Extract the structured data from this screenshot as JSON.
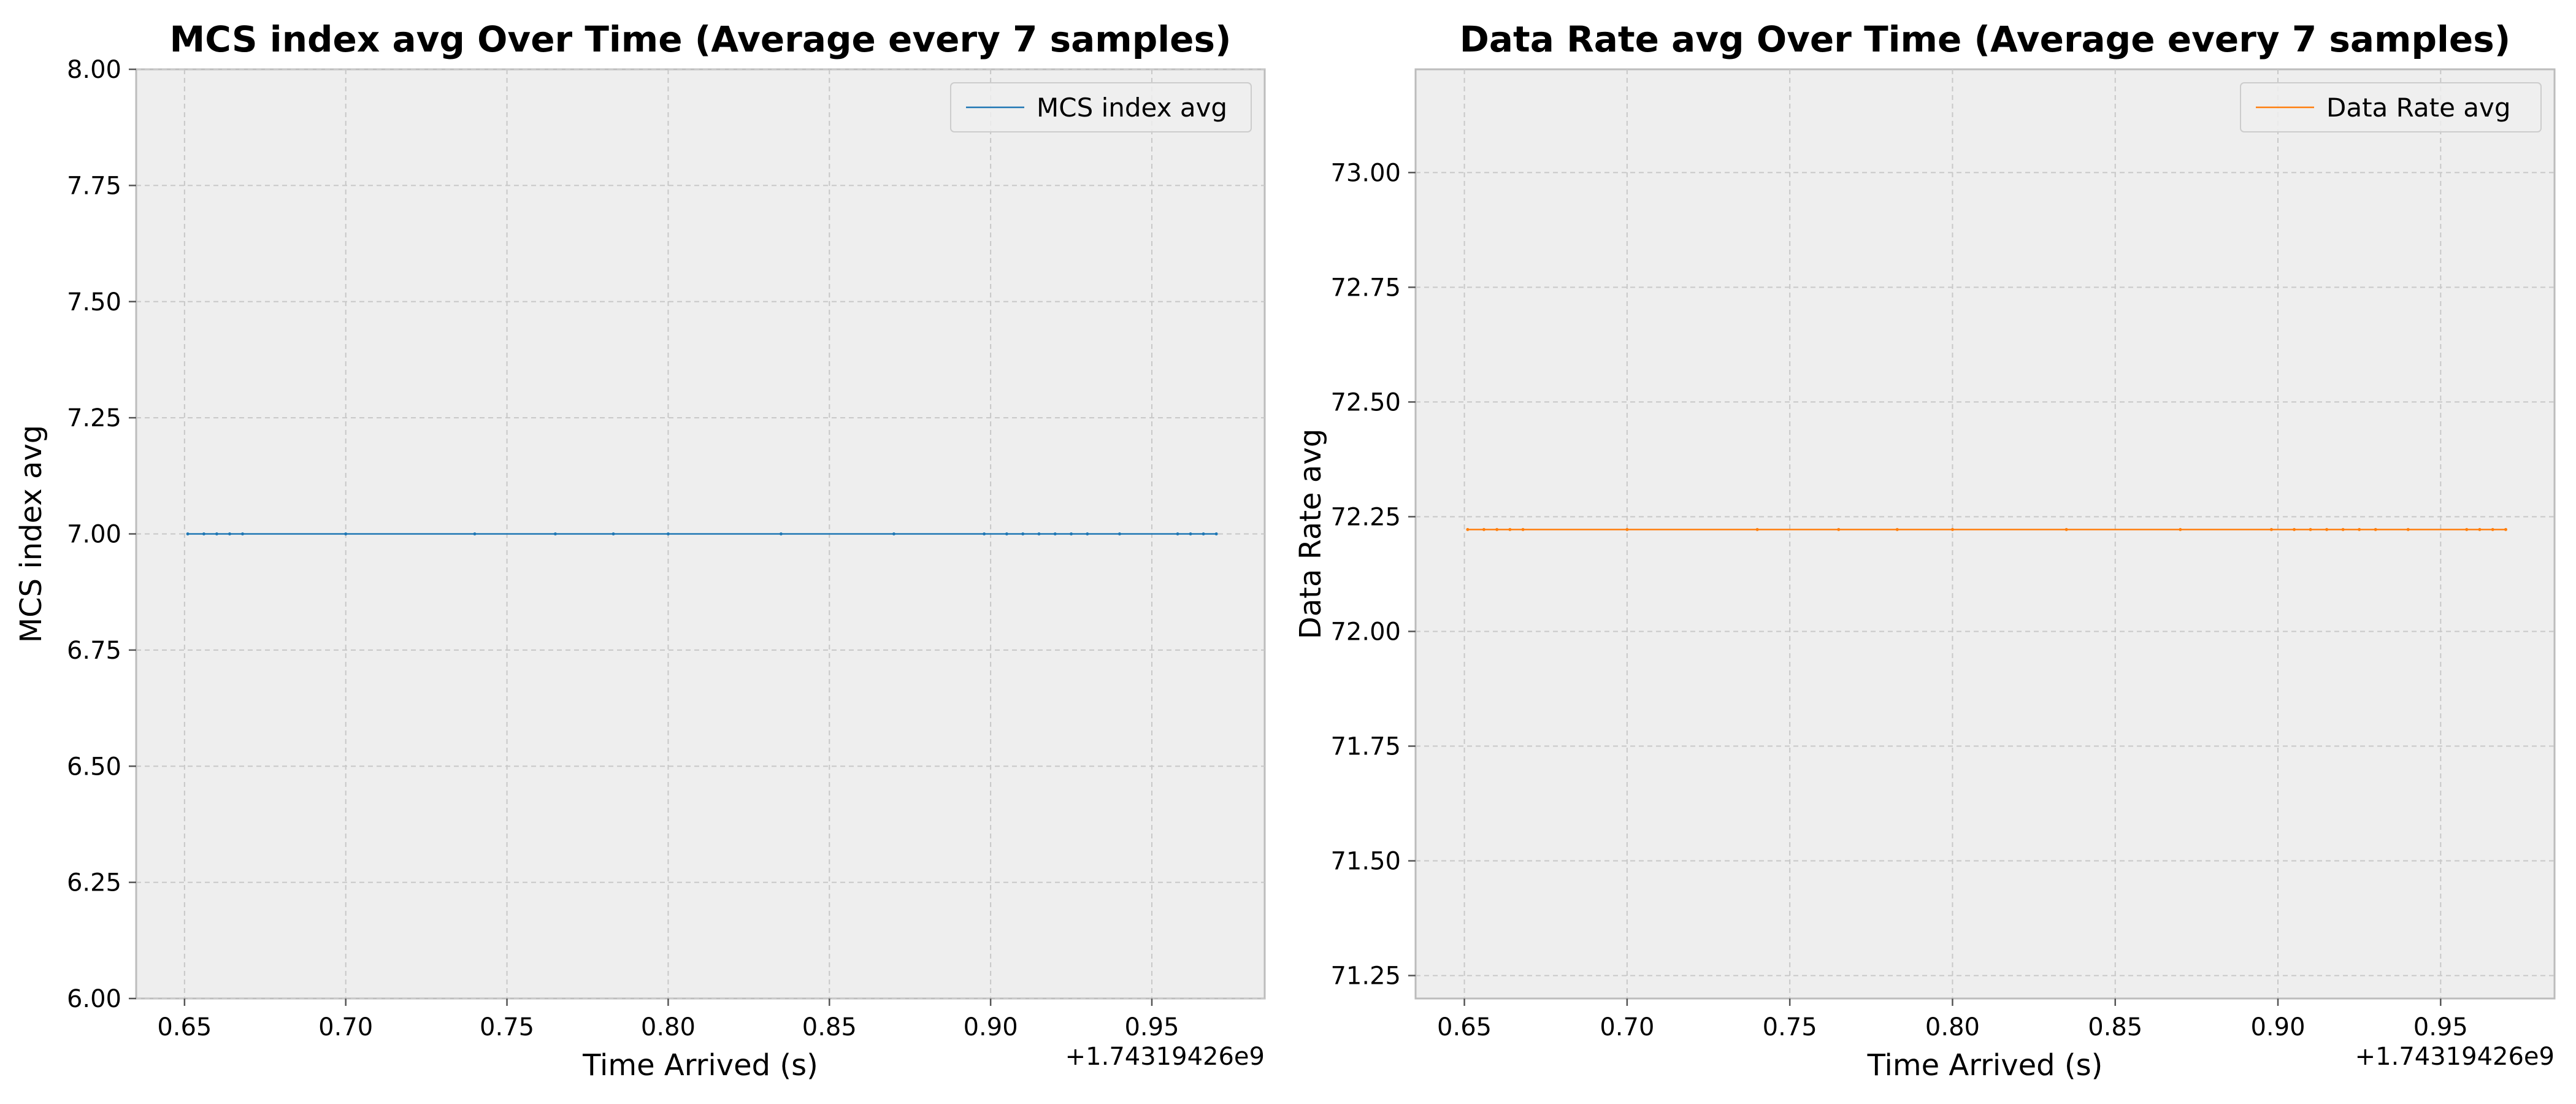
{
  "chart_data": [
    {
      "type": "line",
      "title": "MCS index avg Over Time (Average every 7 samples)",
      "xlabel": "Time Arrived (s)",
      "ylabel": "MCS index avg",
      "x_offset_label": "+1.74319426e9",
      "xlim": [
        0.635,
        0.985
      ],
      "ylim": [
        6.0,
        8.0
      ],
      "x_ticks": [
        0.65,
        0.7,
        0.75,
        0.8,
        0.85,
        0.9,
        0.95
      ],
      "x_tick_labels": [
        "0.65",
        "0.70",
        "0.75",
        "0.80",
        "0.85",
        "0.90",
        "0.95"
      ],
      "y_ticks": [
        6.0,
        6.25,
        6.5,
        6.75,
        7.0,
        7.25,
        7.5,
        7.75,
        8.0
      ],
      "y_tick_labels": [
        "6.00",
        "6.25",
        "6.50",
        "6.75",
        "7.00",
        "7.25",
        "7.50",
        "7.75",
        "8.00"
      ],
      "grid": true,
      "legend_position": "top-right",
      "color": "#1f77b4",
      "series": [
        {
          "name": "MCS index avg",
          "x": [
            0.651,
            0.656,
            0.66,
            0.664,
            0.668,
            0.7,
            0.74,
            0.765,
            0.783,
            0.8,
            0.835,
            0.87,
            0.898,
            0.905,
            0.91,
            0.915,
            0.92,
            0.925,
            0.93,
            0.94,
            0.958,
            0.962,
            0.966,
            0.97
          ],
          "y": [
            7.0,
            7.0,
            7.0,
            7.0,
            7.0,
            7.0,
            7.0,
            7.0,
            7.0,
            7.0,
            7.0,
            7.0,
            7.0,
            7.0,
            7.0,
            7.0,
            7.0,
            7.0,
            7.0,
            7.0,
            7.0,
            7.0,
            7.0,
            7.0
          ]
        }
      ]
    },
    {
      "type": "line",
      "title": "Data Rate avg Over Time (Average every 7 samples)",
      "xlabel": "Time Arrived (s)",
      "ylabel": "Data Rate avg",
      "x_offset_label": "+1.74319426e9",
      "xlim": [
        0.635,
        0.985
      ],
      "ylim": [
        71.2,
        73.225
      ],
      "x_ticks": [
        0.65,
        0.7,
        0.75,
        0.8,
        0.85,
        0.9,
        0.95
      ],
      "x_tick_labels": [
        "0.65",
        "0.70",
        "0.75",
        "0.80",
        "0.85",
        "0.90",
        "0.95"
      ],
      "y_ticks": [
        71.25,
        71.5,
        71.75,
        72.0,
        72.25,
        72.5,
        72.75,
        73.0
      ],
      "y_tick_labels": [
        "71.25",
        "71.50",
        "71.75",
        "72.00",
        "72.25",
        "72.50",
        "72.75",
        "73.00"
      ],
      "grid": true,
      "legend_position": "top-right",
      "color": "#ff7f0e",
      "series": [
        {
          "name": "Data Rate avg",
          "x": [
            0.651,
            0.656,
            0.66,
            0.664,
            0.668,
            0.7,
            0.74,
            0.765,
            0.783,
            0.8,
            0.835,
            0.87,
            0.898,
            0.905,
            0.91,
            0.915,
            0.92,
            0.925,
            0.93,
            0.94,
            0.958,
            0.962,
            0.966,
            0.97
          ],
          "y": [
            72.222,
            72.222,
            72.222,
            72.222,
            72.222,
            72.222,
            72.222,
            72.222,
            72.222,
            72.222,
            72.222,
            72.222,
            72.222,
            72.222,
            72.222,
            72.222,
            72.222,
            72.222,
            72.222,
            72.222,
            72.222,
            72.222,
            72.222,
            72.222
          ]
        }
      ]
    }
  ]
}
